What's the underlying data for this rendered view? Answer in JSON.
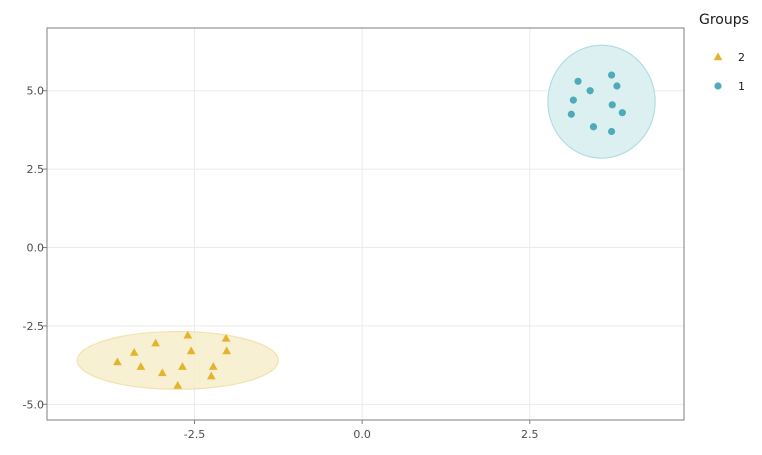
{
  "chart_data": {
    "type": "scatter",
    "title": "",
    "xlabel": "",
    "ylabel": "",
    "xlim": [
      -4.7,
      4.8
    ],
    "ylim": [
      -5.5,
      7.0
    ],
    "x_ticks": [
      -2.5,
      0.0,
      2.5
    ],
    "x_tick_labels": [
      "-2.5",
      "0.0",
      "2.5"
    ],
    "y_ticks": [
      -5.0,
      -2.5,
      0.0,
      2.5,
      5.0
    ],
    "y_tick_labels": [
      "-5.0",
      "-2.5",
      "0.0",
      "2.5",
      "5.0"
    ],
    "grid": true,
    "legend": {
      "title": "Groups",
      "placement": "right",
      "entries": [
        {
          "label": "2",
          "marker": "triangle",
          "color": "#E3B52E"
        },
        {
          "label": "1",
          "marker": "circle",
          "color": "#4FABB8"
        }
      ]
    },
    "series": [
      {
        "group": "2",
        "marker": "triangle",
        "color": "#E3B52E",
        "ellipse": {
          "cx": -2.75,
          "cy": -3.6,
          "rx": 1.5,
          "ry": 0.92,
          "fill": "#F7EDCB",
          "stroke": "#F2E2AE"
        },
        "points": [
          {
            "x": -3.65,
            "y": -3.65
          },
          {
            "x": -3.4,
            "y": -3.35
          },
          {
            "x": -3.3,
            "y": -3.8
          },
          {
            "x": -3.08,
            "y": -3.05
          },
          {
            "x": -2.98,
            "y": -4.0
          },
          {
            "x": -2.75,
            "y": -4.4
          },
          {
            "x": -2.68,
            "y": -3.8
          },
          {
            "x": -2.6,
            "y": -2.8
          },
          {
            "x": -2.55,
            "y": -3.3
          },
          {
            "x": -2.25,
            "y": -4.1
          },
          {
            "x": -2.22,
            "y": -3.8
          },
          {
            "x": -2.03,
            "y": -2.9
          },
          {
            "x": -2.02,
            "y": -3.3
          }
        ]
      },
      {
        "group": "1",
        "marker": "circle",
        "color": "#4FABB8",
        "ellipse": {
          "cx": 3.57,
          "cy": 4.65,
          "rx": 0.8,
          "ry": 1.8,
          "fill": "#D6EDF0",
          "stroke": "#B3DDE3"
        },
        "points": [
          {
            "x": 3.22,
            "y": 5.3
          },
          {
            "x": 3.4,
            "y": 5.0
          },
          {
            "x": 3.15,
            "y": 4.7
          },
          {
            "x": 3.12,
            "y": 4.25
          },
          {
            "x": 3.45,
            "y": 3.85
          },
          {
            "x": 3.72,
            "y": 5.5
          },
          {
            "x": 3.8,
            "y": 5.15
          },
          {
            "x": 3.73,
            "y": 4.55
          },
          {
            "x": 3.88,
            "y": 4.3
          },
          {
            "x": 3.72,
            "y": 3.7
          }
        ]
      }
    ]
  }
}
